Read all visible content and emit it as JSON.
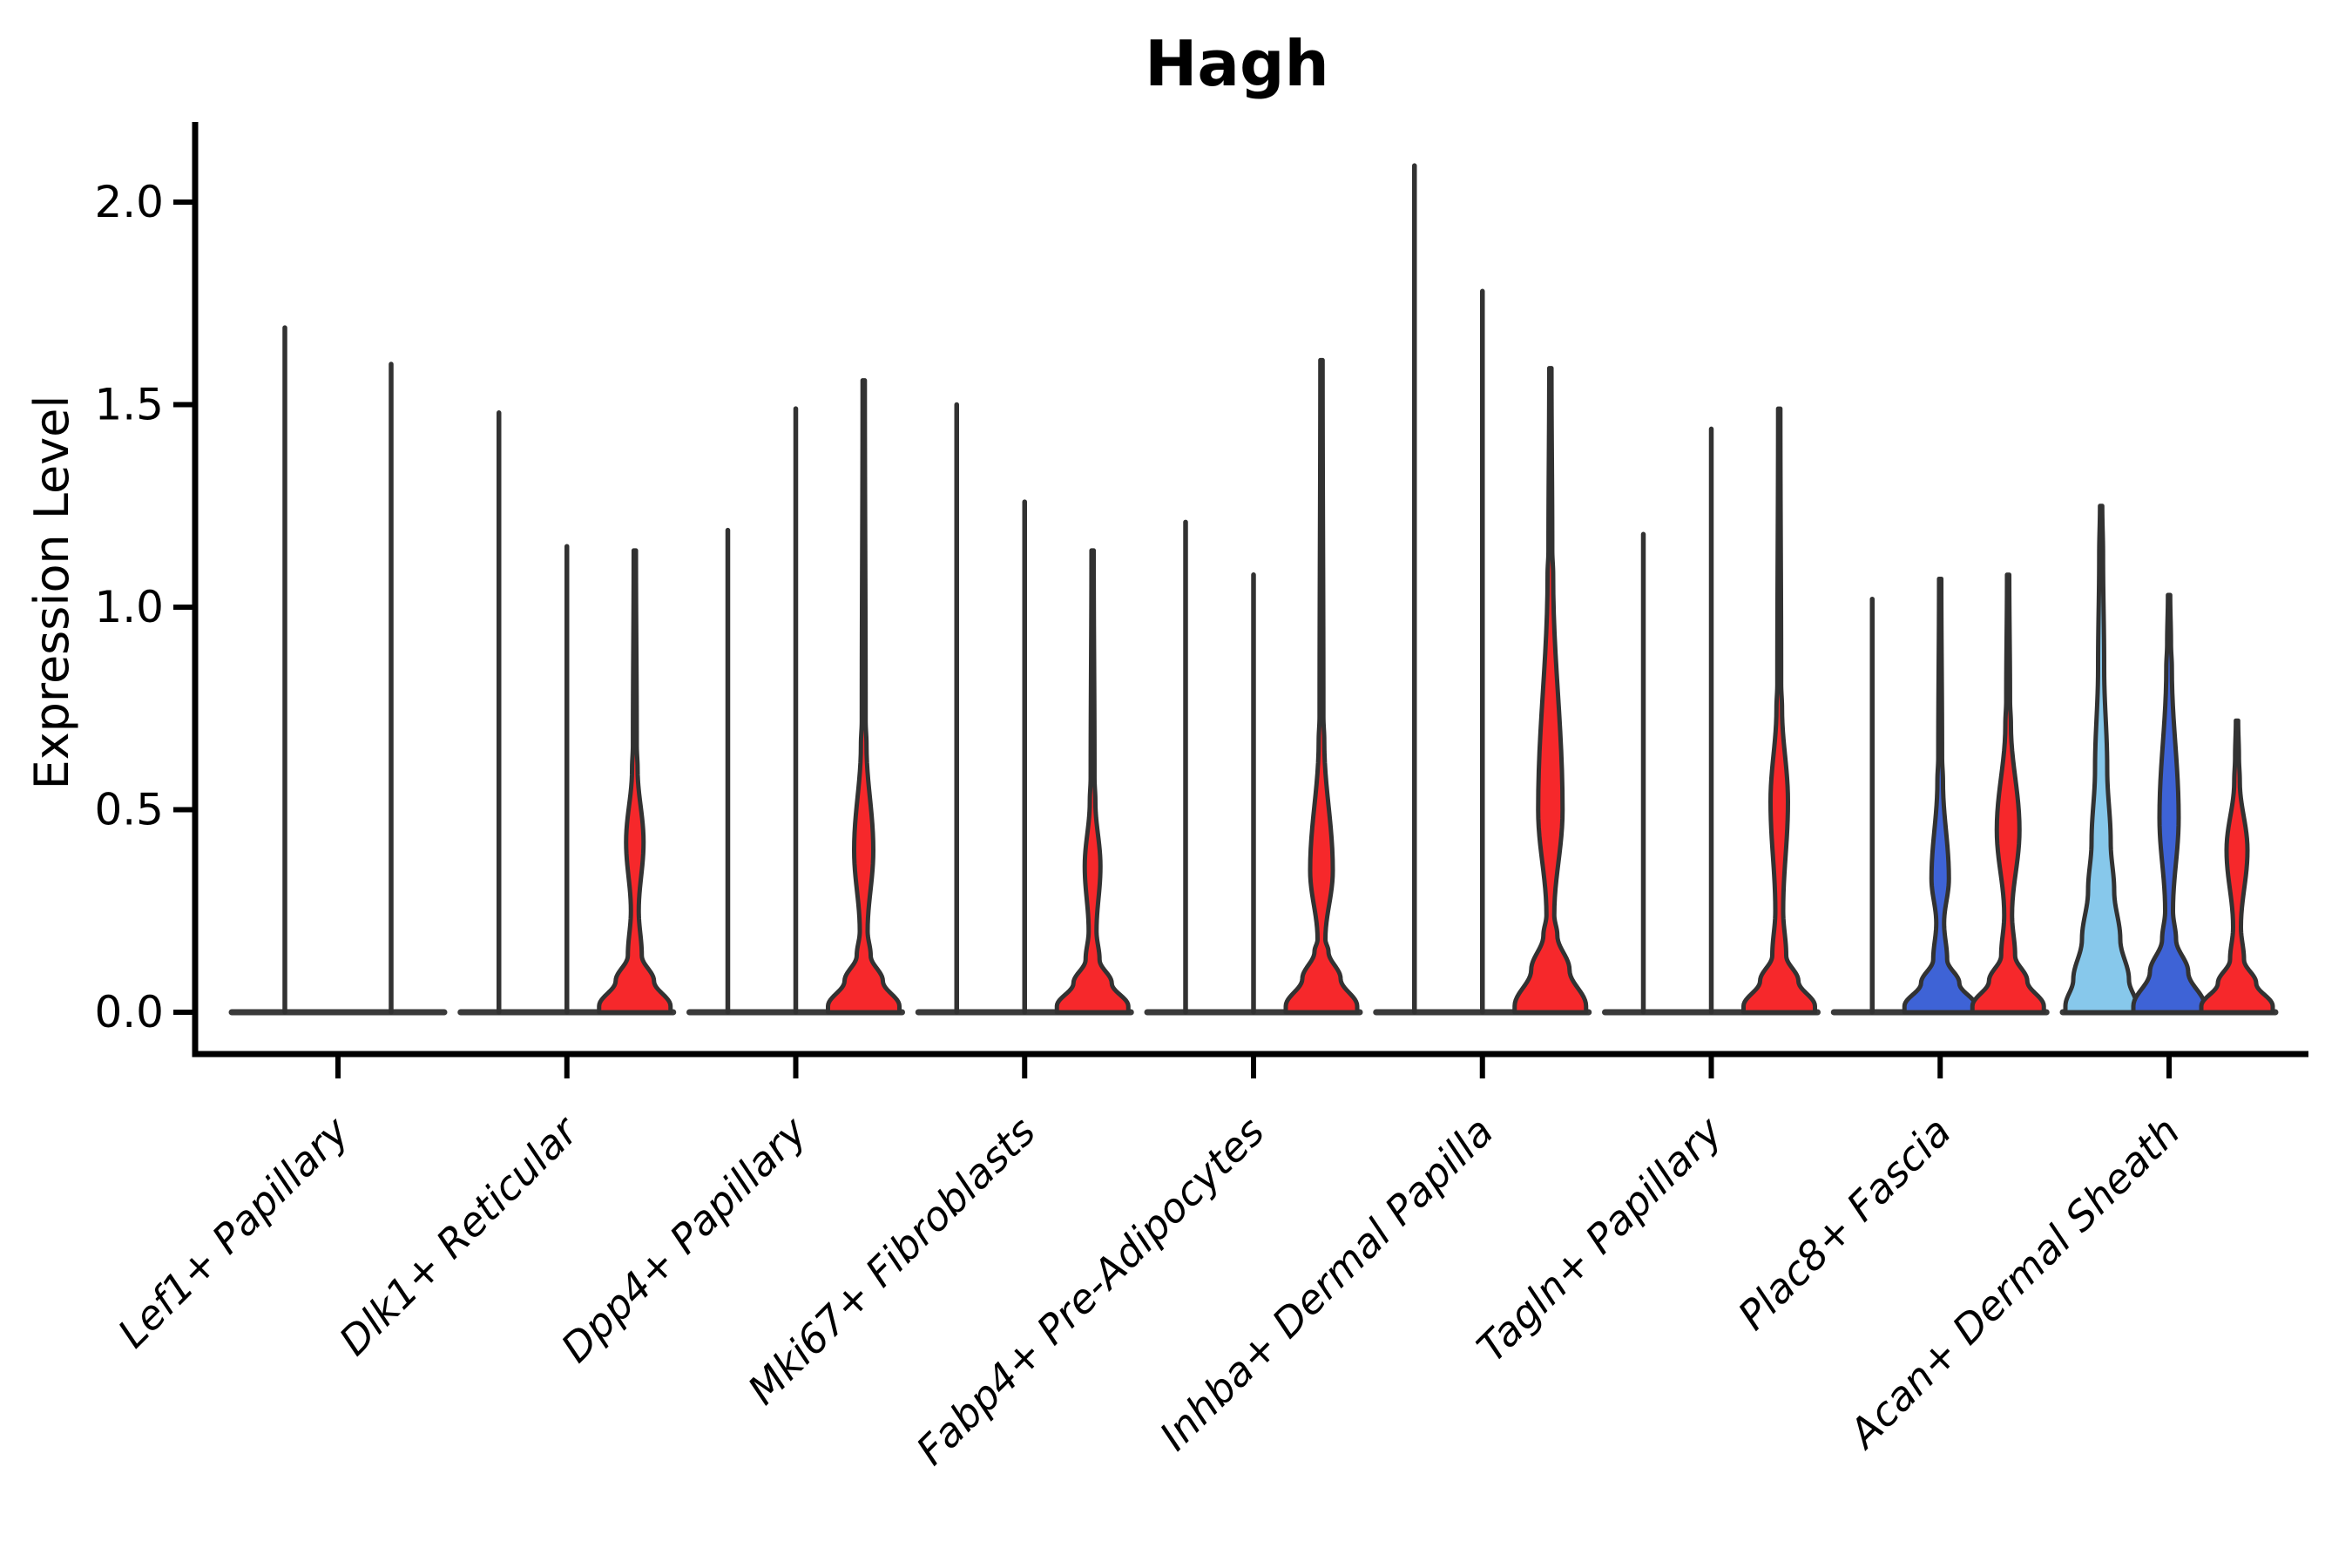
{
  "title": "Hagh",
  "axes": {
    "y_label": "Expression Level",
    "y_tick_labels": [
      "0.0",
      "0.5",
      "1.0",
      "1.5",
      "2.0"
    ],
    "y_tick_values": [
      0.0,
      0.5,
      1.0,
      1.5,
      2.0
    ]
  },
  "colors": {
    "red": "#F6282B",
    "blue": "#3E63D6",
    "lightblue": "#87C8EB",
    "outline": "#323232",
    "baseline": "#3A3A3A",
    "axis": "#000000",
    "background": "#FFFFFF"
  },
  "chart_data": {
    "type": "violin",
    "title": "Hagh",
    "ylabel": "Expression Level",
    "ylim": [
      0,
      2.18
    ],
    "yticks": [
      0.0,
      0.5,
      1.0,
      1.5,
      2.0
    ],
    "grid": false,
    "legend": "none",
    "categories": [
      "Lef1+ Papillary",
      "Dlk1+ Reticular",
      "Dpp4+ Papillary",
      "Mki67+ Fibroblasts",
      "Fabp4+ Pre-Adipocytes",
      "Inhba+ Dermal Papilla",
      "Tagln+ Papillary",
      "Plac8+ Fascia",
      "Acan+ Dermal Sheath"
    ],
    "groups": [
      {
        "category": "Lef1+ Papillary",
        "violins": [
          {
            "style": "spike",
            "color": "none",
            "max": 1.69
          },
          {
            "style": "spike",
            "color": "none",
            "max": 1.6
          }
        ]
      },
      {
        "category": "Dlk1+ Reticular",
        "violins": [
          {
            "style": "spike",
            "color": "none",
            "max": 1.48
          },
          {
            "style": "spike",
            "color": "none",
            "max": 1.15
          },
          {
            "style": "violin",
            "color": "red",
            "max": 1.14,
            "fill_top": 0.6,
            "bulge_peak": 0.42,
            "bulge_hw": 10,
            "waist": 0.25,
            "base_top": 0.14
          }
        ]
      },
      {
        "category": "Dpp4+ Papillary",
        "violins": [
          {
            "style": "spike",
            "color": "none",
            "max": 1.19
          },
          {
            "style": "spike",
            "color": "none",
            "max": 1.49
          },
          {
            "style": "violin",
            "color": "red",
            "max": 1.56,
            "fill_top": 0.66,
            "bulge_peak": 0.4,
            "bulge_hw": 11,
            "waist": 0.2,
            "base_top": 0.14
          }
        ]
      },
      {
        "category": "Mki67+ Fibroblasts",
        "violins": [
          {
            "style": "spike",
            "color": "none",
            "max": 1.5
          },
          {
            "style": "spike",
            "color": "none",
            "max": 1.26
          },
          {
            "style": "violin",
            "color": "red",
            "max": 1.14,
            "fill_top": 0.52,
            "bulge_peak": 0.36,
            "bulge_hw": 9,
            "waist": 0.2,
            "base_top": 0.13
          }
        ]
      },
      {
        "category": "Fabp4+ Pre-Adipocytes",
        "violins": [
          {
            "style": "spike",
            "color": "none",
            "max": 1.21
          },
          {
            "style": "spike",
            "color": "none",
            "max": 1.08
          },
          {
            "style": "violin",
            "color": "red",
            "max": 1.61,
            "fill_top": 0.67,
            "bulge_peak": 0.35,
            "bulge_hw": 13,
            "waist": 0.18,
            "base_top": 0.15
          }
        ]
      },
      {
        "category": "Inhba+ Dermal Papilla",
        "violins": [
          {
            "style": "spike",
            "color": "none",
            "max": 2.09
          },
          {
            "style": "spike",
            "color": "none",
            "max": 1.78
          },
          {
            "style": "violin",
            "color": "red",
            "max": 1.59,
            "fill_top": 1.08,
            "bulge_peak": 0.5,
            "bulge_hw": 14,
            "waist": 0.24,
            "base_top": 0.19
          }
        ]
      },
      {
        "category": "Tagln+ Papillary",
        "violins": [
          {
            "style": "spike",
            "color": "none",
            "max": 1.18
          },
          {
            "style": "spike",
            "color": "none",
            "max": 1.44
          },
          {
            "style": "violin",
            "color": "red",
            "max": 1.49,
            "fill_top": 0.75,
            "bulge_peak": 0.52,
            "bulge_hw": 10,
            "waist": 0.25,
            "base_top": 0.14
          }
        ]
      },
      {
        "category": "Plac8+ Fascia",
        "violins": [
          {
            "style": "spike",
            "color": "none",
            "max": 1.02
          },
          {
            "style": "violin",
            "color": "blue",
            "max": 1.07,
            "fill_top": 0.57,
            "bulge_peak": 0.33,
            "bulge_hw": 10,
            "waist": 0.22,
            "base_top": 0.13
          },
          {
            "style": "violin",
            "color": "red",
            "max": 1.08,
            "fill_top": 0.71,
            "bulge_peak": 0.45,
            "bulge_hw": 13,
            "waist": 0.24,
            "base_top": 0.14
          }
        ]
      },
      {
        "category": "Acan+ Dermal Sheath",
        "violins": [
          {
            "style": "cone",
            "color": "lightblue",
            "max": 1.25
          },
          {
            "style": "violin",
            "color": "blue",
            "max": 1.03,
            "fill_top": 0.85,
            "bulge_peak": 0.48,
            "bulge_hw": 11,
            "waist": 0.25,
            "base_top": 0.18
          },
          {
            "style": "violin",
            "color": "red",
            "max": 0.72,
            "fill_top": 0.57,
            "bulge_peak": 0.4,
            "bulge_hw": 12,
            "waist": 0.21,
            "base_top": 0.13
          }
        ]
      }
    ]
  }
}
